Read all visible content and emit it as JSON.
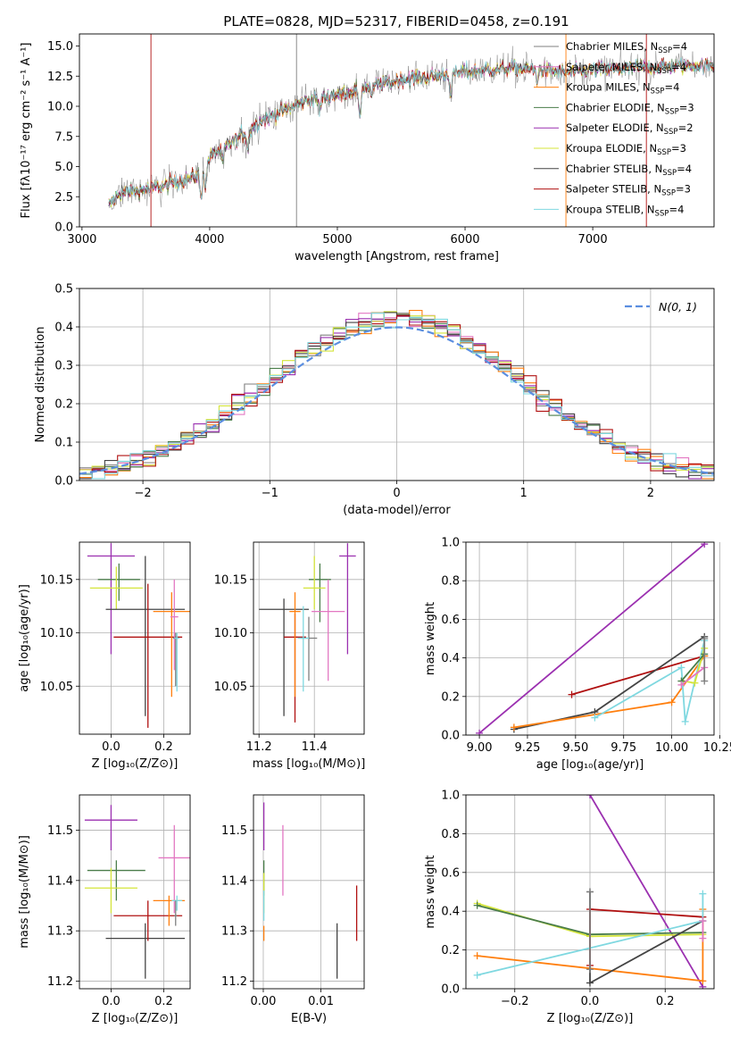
{
  "figure_title": "PLATE=0828, MJD=52317, FIBERID=0458, z=0.191",
  "legend": [
    {
      "label": "Chabrier MILES, N",
      "sub": "SSP",
      "tail": "=4",
      "color": "#7f7f7f"
    },
    {
      "label": "Salpeter MILES, N",
      "sub": "SSP",
      "tail": "=4",
      "color": "#e377c2"
    },
    {
      "label": "Kroupa MILES, N",
      "sub": "SSP",
      "tail": "=4",
      "color": "#ff7f0e"
    },
    {
      "label": "Chabrier ELODIE, N",
      "sub": "SSP",
      "tail": "=3",
      "color": "#4a7d4a"
    },
    {
      "label": "Salpeter ELODIE, N",
      "sub": "SSP",
      "tail": "=2",
      "color": "#9b30b0"
    },
    {
      "label": "Kroupa ELODIE, N",
      "sub": "SSP",
      "tail": "=3",
      "color": "#d4e43a"
    },
    {
      "label": "Chabrier STELIB, N",
      "sub": "SSP",
      "tail": "=4",
      "color": "#444444"
    },
    {
      "label": "Salpeter STELIB, N",
      "sub": "SSP",
      "tail": "=3",
      "color": "#b01010"
    },
    {
      "label": "Kroupa STELIB, N",
      "sub": "SSP",
      "tail": "=4",
      "color": "#7fd8e0"
    }
  ],
  "chart_data": [
    {
      "id": "spectrum",
      "type": "line",
      "xlabel": "wavelength [Angstrom, rest frame]",
      "ylabel": "Flux [fλ10⁻¹⁷ erg cm⁻² s⁻¹ A⁻¹]",
      "xlim": [
        2980,
        7950
      ],
      "ylim": [
        0,
        16
      ],
      "xticks": [
        3000,
        4000,
        5000,
        6000,
        7000
      ],
      "yticks": [
        0.0,
        2.5,
        5.0,
        7.5,
        10.0,
        12.5,
        15.0
      ],
      "grid": false,
      "legend_position": "upper right",
      "data_range_x": [
        3210,
        7950
      ],
      "continuum": [
        [
          3210,
          1.8
        ],
        [
          3300,
          2.8
        ],
        [
          3500,
          3.1
        ],
        [
          3700,
          3.6
        ],
        [
          3900,
          4.2
        ],
        [
          4000,
          5.8
        ],
        [
          4200,
          7.2
        ],
        [
          4400,
          8.8
        ],
        [
          4600,
          9.8
        ],
        [
          4800,
          10.6
        ],
        [
          5000,
          11.0
        ],
        [
          5200,
          11.5
        ],
        [
          5400,
          12.0
        ],
        [
          5600,
          12.4
        ],
        [
          5800,
          12.5
        ],
        [
          6000,
          12.9
        ],
        [
          6200,
          13.0
        ],
        [
          6400,
          13.2
        ],
        [
          6600,
          13.0
        ],
        [
          6800,
          12.8
        ],
        [
          7000,
          13.0
        ],
        [
          7200,
          13.1
        ],
        [
          7500,
          13.3
        ],
        [
          7950,
          13.4
        ]
      ],
      "absorption_features": [
        [
          3933,
          2.5
        ],
        [
          3968,
          2.0
        ],
        [
          4102,
          1.2
        ],
        [
          4300,
          1.6
        ],
        [
          4861,
          1.0
        ],
        [
          5175,
          2.6
        ],
        [
          5270,
          0.9
        ],
        [
          5890,
          1.8
        ],
        [
          6563,
          0.8
        ]
      ],
      "vertical_spikes": [
        3540,
        4680,
        6790,
        7420
      ]
    },
    {
      "id": "residuals",
      "type": "histogram",
      "xlabel": "(data-model)/error",
      "ylabel": "Normed distribution",
      "xlim": [
        -2.5,
        2.5
      ],
      "ylim": [
        0,
        0.5
      ],
      "xticks": [
        -2,
        -1,
        0,
        1,
        2
      ],
      "yticks": [
        0.0,
        0.1,
        0.2,
        0.3,
        0.4,
        0.5
      ],
      "grid": true,
      "legend_position": "upper right",
      "reference_label": "N(0, 1)",
      "reference_color": "#5b8ee0",
      "bin_width": 0.1,
      "bin_start": -2.5
    },
    {
      "id": "age-vs-Z",
      "type": "scatter-errorbar",
      "xlabel": "Z [log₁₀(Z/Z⊙)]",
      "ylabel": "age  [log₁₀(age/yr)]",
      "xlim": [
        -0.12,
        0.3
      ],
      "ylim": [
        10.005,
        10.185
      ],
      "xticks": [
        0.0,
        0.2
      ],
      "yticks": [
        10.05,
        10.1,
        10.15
      ],
      "grid": true,
      "points": [
        {
          "x": 0.0,
          "y": 10.172,
          "xerr": 0.09,
          "yerr": [
            0.092,
            0.012
          ],
          "color": "#9b30b0"
        },
        {
          "x": 0.03,
          "y": 10.15,
          "xerr": 0.08,
          "yerr": [
            0.02,
            0.015
          ],
          "color": "#4a7d4a"
        },
        {
          "x": 0.02,
          "y": 10.142,
          "xerr": 0.1,
          "yerr": [
            0.02,
            0.02
          ],
          "color": "#d4e43a"
        },
        {
          "x": 0.13,
          "y": 10.122,
          "xerr": 0.15,
          "yerr": [
            0.1,
            0.05
          ],
          "color": "#444444"
        },
        {
          "x": 0.14,
          "y": 10.096,
          "xerr": 0.13,
          "yerr": [
            0.085,
            0.05
          ],
          "color": "#b01010"
        },
        {
          "x": 0.23,
          "y": 10.12,
          "xerr": 0.07,
          "yerr": [
            0.08,
            0.018
          ],
          "color": "#ff7f0e"
        },
        {
          "x": 0.24,
          "y": 10.115,
          "xerr": 0.015,
          "yerr": [
            0.05,
            0.035
          ],
          "color": "#e377c2"
        },
        {
          "x": 0.245,
          "y": 10.095,
          "xerr": 0.01,
          "yerr": [
            0.045,
            0.005
          ],
          "color": "#7f7f7f"
        },
        {
          "x": 0.25,
          "y": 10.095,
          "xerr": 0.01,
          "yerr": [
            0.05,
            0.005
          ],
          "color": "#7fd8e0"
        }
      ]
    },
    {
      "id": "age-vs-mass",
      "type": "scatter-errorbar",
      "xlabel": "mass [log₁₀(M/M⊙)]",
      "ylabel": "",
      "xlim": [
        11.18,
        11.58
      ],
      "ylim": [
        10.005,
        10.185
      ],
      "xticks": [
        11.2,
        11.4
      ],
      "yticks": [
        10.05,
        10.1,
        10.15
      ],
      "grid": true,
      "points": [
        {
          "x": 11.52,
          "y": 10.172,
          "xerr": 0.03,
          "yerr": [
            0.092,
            0.012
          ],
          "color": "#9b30b0"
        },
        {
          "x": 11.42,
          "y": 10.15,
          "xerr": 0.04,
          "yerr": [
            0.04,
            0.015
          ],
          "color": "#4a7d4a"
        },
        {
          "x": 11.4,
          "y": 10.142,
          "xerr": 0.04,
          "yerr": [
            0.02,
            0.03
          ],
          "color": "#d4e43a"
        },
        {
          "x": 11.29,
          "y": 10.122,
          "xerr": 0.09,
          "yerr": [
            0.1,
            0.01
          ],
          "color": "#444444"
        },
        {
          "x": 11.33,
          "y": 10.096,
          "xerr": 0.04,
          "yerr": [
            0.08,
            0.022
          ],
          "color": "#b01010"
        },
        {
          "x": 11.33,
          "y": 10.12,
          "xerr": 0.02,
          "yerr": [
            0.08,
            0.018
          ],
          "color": "#ff7f0e"
        },
        {
          "x": 11.45,
          "y": 10.12,
          "xerr": 0.06,
          "yerr": [
            0.065,
            0.03
          ],
          "color": "#e377c2"
        },
        {
          "x": 11.38,
          "y": 10.095,
          "xerr": 0.03,
          "yerr": [
            0.04,
            0.02
          ],
          "color": "#7f7f7f"
        },
        {
          "x": 11.36,
          "y": 10.095,
          "xerr": 0.02,
          "yerr": [
            0.05,
            0.03
          ],
          "color": "#7fd8e0"
        }
      ]
    },
    {
      "id": "weight-vs-age",
      "type": "line",
      "xlabel": "age  [log₁₀(age/yr)]",
      "ylabel": "mass weight",
      "xlim": [
        8.93,
        10.22
      ],
      "ylim": [
        0,
        1
      ],
      "xticks": [
        9.0,
        9.25,
        9.5,
        9.75,
        10.0,
        10.25
      ],
      "yticks": [
        0.0,
        0.2,
        0.4,
        0.6,
        0.8,
        1.0
      ],
      "grid": true,
      "series": [
        {
          "color": "#9b30b0",
          "x": [
            9.0,
            10.17
          ],
          "y": [
            0.01,
            0.99
          ]
        },
        {
          "color": "#b01010",
          "x": [
            9.48,
            10.17
          ],
          "y": [
            0.21,
            0.41
          ]
        },
        {
          "color": "#444444",
          "x": [
            9.18,
            9.6,
            10.17
          ],
          "y": [
            0.03,
            0.12,
            0.51
          ]
        },
        {
          "color": "#ff7f0e",
          "x": [
            9.18,
            10.0,
            10.17
          ],
          "y": [
            0.04,
            0.17,
            0.41
          ]
        },
        {
          "color": "#7fd8e0",
          "x": [
            9.6,
            10.05,
            10.07,
            10.17
          ],
          "y": [
            0.09,
            0.35,
            0.07,
            0.49
          ]
        },
        {
          "color": "#d4e43a",
          "x": [
            10.06,
            10.12,
            10.17
          ],
          "y": [
            0.28,
            0.27,
            0.45
          ]
        },
        {
          "color": "#4a7d4a",
          "x": [
            10.05,
            10.17
          ],
          "y": [
            0.28,
            0.42
          ]
        },
        {
          "color": "#e377c2",
          "x": [
            10.05,
            10.17
          ],
          "y": [
            0.26,
            0.35
          ]
        },
        {
          "color": "#7f7f7f",
          "x": [
            10.17,
            10.17
          ],
          "y": [
            0.28,
            0.5
          ]
        }
      ]
    },
    {
      "id": "mass-vs-Z",
      "type": "scatter-errorbar",
      "xlabel": "Z [log₁₀(Z/Z⊙)]",
      "ylabel": "mass [log₁₀(M/M⊙)]",
      "xlim": [
        -0.12,
        0.3
      ],
      "ylim": [
        11.185,
        11.57
      ],
      "xticks": [
        0.0,
        0.2
      ],
      "yticks": [
        11.2,
        11.3,
        11.4,
        11.5
      ],
      "grid": true,
      "points": [
        {
          "x": 0.0,
          "y": 11.52,
          "xerr": 0.1,
          "yerr": [
            0.06,
            0.03
          ],
          "color": "#9b30b0"
        },
        {
          "x": 0.02,
          "y": 11.42,
          "xerr": 0.11,
          "yerr": [
            0.06,
            0.02
          ],
          "color": "#4a7d4a"
        },
        {
          "x": 0.0,
          "y": 11.385,
          "xerr": 0.1,
          "yerr": [
            0.05,
            0.04
          ],
          "color": "#d4e43a"
        },
        {
          "x": 0.13,
          "y": 11.285,
          "xerr": 0.15,
          "yerr": [
            0.08,
            0.03
          ],
          "color": "#444444"
        },
        {
          "x": 0.14,
          "y": 11.33,
          "xerr": 0.13,
          "yerr": [
            0.05,
            0.03
          ],
          "color": "#b01010"
        },
        {
          "x": 0.22,
          "y": 11.36,
          "xerr": 0.06,
          "yerr": [
            0.05,
            0.01
          ],
          "color": "#ff7f0e"
        },
        {
          "x": 0.24,
          "y": 11.445,
          "xerr": 0.06,
          "yerr": [
            0.11,
            0.065
          ],
          "color": "#e377c2"
        },
        {
          "x": 0.25,
          "y": 11.36,
          "xerr": 0.02,
          "yerr": [
            0.02,
            0.01
          ],
          "color": "#7fd8e0"
        },
        {
          "x": 0.245,
          "y": 11.33,
          "xerr": 0.005,
          "yerr": [
            0.02,
            0.03
          ],
          "color": "#7f7f7f"
        }
      ]
    },
    {
      "id": "mass-vs-ebv",
      "type": "scatter-errorbar",
      "xlabel": "E(B-V)",
      "ylabel": "",
      "xlim": [
        -0.0017,
        0.0175
      ],
      "ylim": [
        11.185,
        11.57
      ],
      "xticks": [
        0.0,
        0.01
      ],
      "yticks": [
        11.2,
        11.3,
        11.4,
        11.5
      ],
      "grid": true,
      "points": [
        {
          "x": 0.0001,
          "y": 11.52,
          "xerr": 0.0,
          "yerr": [
            0.06,
            0.035
          ],
          "color": "#9b30b0"
        },
        {
          "x": 0.0001,
          "y": 11.42,
          "xerr": 0.0,
          "yerr": [
            0.05,
            0.02
          ],
          "color": "#4a7d4a"
        },
        {
          "x": 0.0001,
          "y": 11.385,
          "xerr": 0.0,
          "yerr": [
            0.05,
            0.03
          ],
          "color": "#d4e43a"
        },
        {
          "x": 0.0001,
          "y": 11.36,
          "xerr": 0.0,
          "yerr": [
            0.04,
            0.02
          ],
          "color": "#7fd8e0"
        },
        {
          "x": 0.0001,
          "y": 11.3,
          "xerr": 0.0,
          "yerr": [
            0.02,
            0.01
          ],
          "color": "#ff7f0e"
        },
        {
          "x": 0.0034,
          "y": 11.44,
          "xerr": 0.0,
          "yerr": [
            0.07,
            0.07
          ],
          "color": "#e377c2"
        },
        {
          "x": 0.0128,
          "y": 11.285,
          "xerr": 0.0,
          "yerr": [
            0.08,
            0.03
          ],
          "color": "#444444"
        },
        {
          "x": 0.0162,
          "y": 11.33,
          "xerr": 0.0,
          "yerr": [
            0.05,
            0.06
          ],
          "color": "#b01010"
        }
      ]
    },
    {
      "id": "weight-vs-Z",
      "type": "line",
      "xlabel": "Z [log₁₀(Z/Z⊙)]",
      "ylabel": "mass weight",
      "xlim": [
        -0.33,
        0.33
      ],
      "ylim": [
        0,
        1
      ],
      "xticks": [
        -0.2,
        0.0,
        0.2
      ],
      "yticks": [
        0.0,
        0.2,
        0.4,
        0.6,
        0.8,
        1.0
      ],
      "grid": true,
      "series": [
        {
          "color": "#9b30b0",
          "x": [
            0.0,
            0.3
          ],
          "y": [
            1.0,
            0.01
          ]
        },
        {
          "color": "#d4e43a",
          "x": [
            -0.3,
            0.0,
            0.3
          ],
          "y": [
            0.44,
            0.27,
            0.28
          ]
        },
        {
          "color": "#4a7d4a",
          "x": [
            -0.3,
            0.0,
            0.3
          ],
          "y": [
            0.43,
            0.28,
            0.29
          ]
        },
        {
          "color": "#ff7f0e",
          "x": [
            -0.3,
            0.3,
            0.3
          ],
          "y": [
            0.17,
            0.04,
            0.41
          ]
        },
        {
          "color": "#444444",
          "x": [
            0.0,
            0.0,
            0.3
          ],
          "y": [
            0.5,
            0.03,
            0.35
          ]
        },
        {
          "color": "#b01010",
          "x": [
            0.0,
            0.0,
            0.3
          ],
          "y": [
            0.12,
            0.41,
            0.37
          ]
        },
        {
          "color": "#7fd8e0",
          "x": [
            -0.3,
            0.3,
            0.3
          ],
          "y": [
            0.07,
            0.35,
            0.49
          ]
        },
        {
          "color": "#e377c2",
          "x": [
            0.3,
            0.3
          ],
          "y": [
            0.26,
            0.35
          ]
        },
        {
          "color": "#7f7f7f",
          "x": [
            0.0,
            0.0
          ],
          "y": [
            0.1,
            0.5
          ]
        }
      ]
    }
  ]
}
